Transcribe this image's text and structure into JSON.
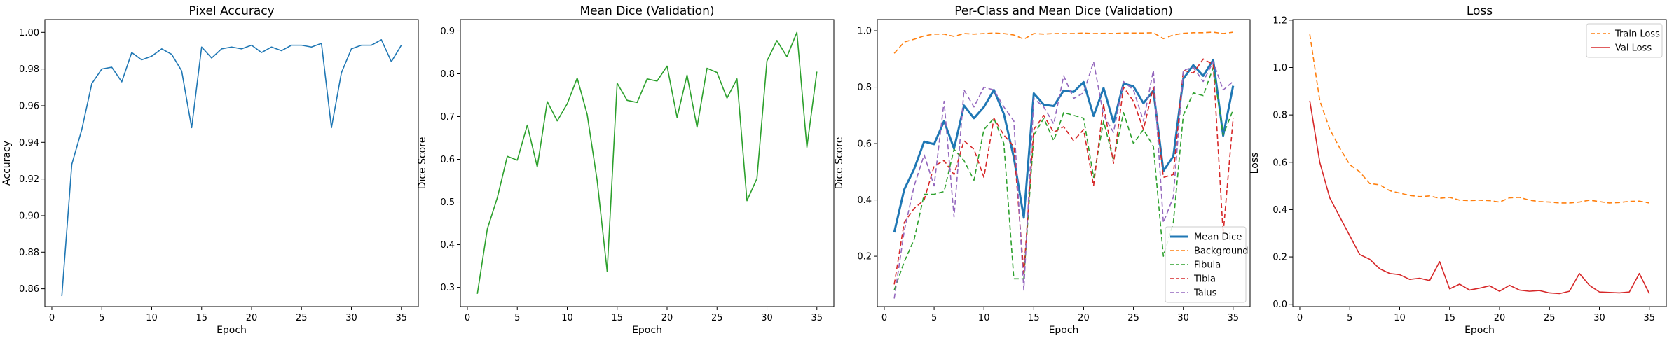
{
  "chart_data": [
    {
      "type": "line",
      "title": "Pixel Accuracy",
      "xlabel": "Epoch",
      "ylabel": "Accuracy",
      "xlim": [
        -0.7,
        36.7
      ],
      "ylim": [
        0.8503,
        1.007
      ],
      "xticks": [
        0,
        5,
        10,
        15,
        20,
        25,
        30,
        35
      ],
      "yticks": [
        0.86,
        0.88,
        0.9,
        0.92,
        0.94,
        0.96,
        0.98,
        1.0
      ],
      "ytick_decimals": 2,
      "grid": false,
      "x": [
        1,
        2,
        3,
        4,
        5,
        6,
        7,
        8,
        9,
        10,
        11,
        12,
        13,
        14,
        15,
        16,
        17,
        18,
        19,
        20,
        21,
        22,
        23,
        24,
        25,
        26,
        27,
        28,
        29,
        30,
        31,
        32,
        33,
        34,
        35
      ],
      "series": [
        {
          "color": "#1f77b4",
          "dash": "",
          "width": 1.6,
          "values": [
            0.856,
            0.928,
            0.947,
            0.972,
            0.98,
            0.981,
            0.973,
            0.989,
            0.985,
            0.987,
            0.991,
            0.988,
            0.979,
            0.948,
            0.992,
            0.986,
            0.991,
            0.992,
            0.991,
            0.993,
            0.989,
            0.992,
            0.99,
            0.993,
            0.993,
            0.992,
            0.994,
            0.948,
            0.978,
            0.991,
            0.993,
            0.993,
            0.996,
            0.984,
            0.993
          ]
        }
      ]
    },
    {
      "type": "line",
      "title": "Mean Dice (Validation)",
      "xlabel": "Epoch",
      "ylabel": "Dice Score",
      "xlim": [
        -0.7,
        36.7
      ],
      "ylim": [
        0.255,
        0.927
      ],
      "xticks": [
        0,
        5,
        10,
        15,
        20,
        25,
        30,
        35
      ],
      "yticks": [
        0.3,
        0.4,
        0.5,
        0.6,
        0.7,
        0.8,
        0.9
      ],
      "ytick_decimals": 1,
      "grid": false,
      "x": [
        1,
        2,
        3,
        4,
        5,
        6,
        7,
        8,
        9,
        10,
        11,
        12,
        13,
        14,
        15,
        16,
        17,
        18,
        19,
        20,
        21,
        22,
        23,
        24,
        25,
        26,
        27,
        28,
        29,
        30,
        31,
        32,
        33,
        34,
        35
      ],
      "series": [
        {
          "color": "#2ca02c",
          "dash": "",
          "width": 1.6,
          "values": [
            0.285,
            0.437,
            0.51,
            0.607,
            0.598,
            0.68,
            0.582,
            0.735,
            0.69,
            0.73,
            0.79,
            0.705,
            0.55,
            0.337,
            0.778,
            0.738,
            0.733,
            0.788,
            0.783,
            0.818,
            0.698,
            0.797,
            0.675,
            0.813,
            0.803,
            0.743,
            0.788,
            0.503,
            0.555,
            0.83,
            0.878,
            0.84,
            0.897,
            0.628,
            0.805
          ]
        }
      ]
    },
    {
      "type": "line",
      "title": "Per-Class and Mean Dice (Validation)",
      "xlabel": "Epoch",
      "ylabel": "Dice Score",
      "xlim": [
        -0.7,
        36.7
      ],
      "ylim": [
        0.0214,
        1.0398
      ],
      "xticks": [
        0,
        5,
        10,
        15,
        20,
        25,
        30,
        35
      ],
      "yticks": [
        0.2,
        0.4,
        0.6,
        0.8,
        1.0
      ],
      "ytick_decimals": 1,
      "grid": false,
      "legend": "lower right",
      "x": [
        1,
        2,
        3,
        4,
        5,
        6,
        7,
        8,
        9,
        10,
        11,
        12,
        13,
        14,
        15,
        16,
        17,
        18,
        19,
        20,
        21,
        22,
        23,
        24,
        25,
        26,
        27,
        28,
        29,
        30,
        31,
        32,
        33,
        34,
        35
      ],
      "series": [
        {
          "name": "Mean Dice",
          "color": "#1f77b4",
          "dash": "",
          "width": 3,
          "values": [
            0.285,
            0.437,
            0.51,
            0.607,
            0.598,
            0.68,
            0.582,
            0.735,
            0.69,
            0.73,
            0.79,
            0.705,
            0.55,
            0.337,
            0.778,
            0.738,
            0.733,
            0.788,
            0.783,
            0.818,
            0.698,
            0.797,
            0.675,
            0.813,
            0.803,
            0.743,
            0.788,
            0.503,
            0.555,
            0.83,
            0.878,
            0.84,
            0.897,
            0.628,
            0.805
          ]
        },
        {
          "name": "Background",
          "color": "#ff7f0e",
          "dash": "7,4",
          "width": 1.6,
          "values": [
            0.92,
            0.96,
            0.97,
            0.982,
            0.988,
            0.988,
            0.98,
            0.99,
            0.988,
            0.99,
            0.992,
            0.99,
            0.985,
            0.97,
            0.99,
            0.988,
            0.99,
            0.99,
            0.99,
            0.992,
            0.99,
            0.991,
            0.99,
            0.992,
            0.992,
            0.992,
            0.993,
            0.972,
            0.985,
            0.991,
            0.993,
            0.993,
            0.995,
            0.99,
            0.995
          ]
        },
        {
          "name": "Fibula",
          "color": "#2ca02c",
          "dash": "7,4",
          "width": 1.6,
          "values": [
            0.08,
            0.18,
            0.26,
            0.42,
            0.42,
            0.43,
            0.58,
            0.54,
            0.47,
            0.65,
            0.69,
            0.6,
            0.12,
            0.12,
            0.63,
            0.69,
            0.61,
            0.71,
            0.7,
            0.69,
            0.48,
            0.68,
            0.54,
            0.71,
            0.6,
            0.65,
            0.59,
            0.2,
            0.32,
            0.7,
            0.78,
            0.77,
            0.87,
            0.63,
            0.72
          ]
        },
        {
          "name": "Tibia",
          "color": "#d62728",
          "dash": "7,4",
          "width": 1.6,
          "values": [
            0.1,
            0.32,
            0.37,
            0.4,
            0.52,
            0.54,
            0.49,
            0.61,
            0.58,
            0.48,
            0.69,
            0.63,
            0.59,
            0.14,
            0.65,
            0.7,
            0.64,
            0.66,
            0.61,
            0.65,
            0.45,
            0.74,
            0.53,
            0.8,
            0.75,
            0.65,
            0.8,
            0.48,
            0.49,
            0.86,
            0.85,
            0.9,
            0.88,
            0.28,
            0.69
          ]
        },
        {
          "name": "Talus",
          "color": "#9467bd",
          "dash": "7,4",
          "width": 1.6,
          "values": [
            0.05,
            0.29,
            0.45,
            0.56,
            0.45,
            0.75,
            0.34,
            0.79,
            0.73,
            0.8,
            0.79,
            0.73,
            0.68,
            0.08,
            0.76,
            0.73,
            0.67,
            0.84,
            0.76,
            0.78,
            0.89,
            0.7,
            0.64,
            0.82,
            0.79,
            0.68,
            0.86,
            0.32,
            0.41,
            0.86,
            0.87,
            0.82,
            0.89,
            0.79,
            0.82
          ]
        }
      ]
    },
    {
      "type": "line",
      "title": "Loss",
      "xlabel": "Epoch",
      "ylabel": "Loss",
      "xlim": [
        -0.7,
        36.7
      ],
      "ylim": [
        -0.0097,
        1.2025
      ],
      "xticks": [
        0,
        5,
        10,
        15,
        20,
        25,
        30,
        35
      ],
      "yticks": [
        0.0,
        0.2,
        0.4,
        0.6,
        0.8,
        1.0,
        1.2
      ],
      "ytick_decimals": 1,
      "grid": false,
      "legend": "upper right",
      "x": [
        1,
        2,
        3,
        4,
        5,
        6,
        7,
        8,
        9,
        10,
        11,
        12,
        13,
        14,
        15,
        16,
        17,
        18,
        19,
        20,
        21,
        22,
        23,
        24,
        25,
        26,
        27,
        28,
        29,
        30,
        31,
        32,
        33,
        34,
        35
      ],
      "series": [
        {
          "name": "Train Loss",
          "color": "#ff7f0e",
          "dash": "7,4",
          "width": 1.6,
          "values": [
            1.14,
            0.86,
            0.74,
            0.66,
            0.59,
            0.56,
            0.51,
            0.505,
            0.48,
            0.47,
            0.46,
            0.455,
            0.458,
            0.448,
            0.452,
            0.44,
            0.438,
            0.44,
            0.438,
            0.432,
            0.45,
            0.452,
            0.44,
            0.434,
            0.432,
            0.428,
            0.428,
            0.432,
            0.44,
            0.434,
            0.428,
            0.43,
            0.435,
            0.436,
            0.428
          ]
        },
        {
          "name": "Val Loss",
          "color": "#d62728",
          "dash": "",
          "width": 1.6,
          "values": [
            0.86,
            0.6,
            0.45,
            0.37,
            0.29,
            0.21,
            0.19,
            0.15,
            0.13,
            0.125,
            0.105,
            0.11,
            0.1,
            0.18,
            0.065,
            0.085,
            0.06,
            0.068,
            0.078,
            0.055,
            0.08,
            0.06,
            0.055,
            0.058,
            0.048,
            0.045,
            0.055,
            0.13,
            0.08,
            0.052,
            0.05,
            0.048,
            0.052,
            0.13,
            0.045
          ]
        }
      ]
    }
  ]
}
